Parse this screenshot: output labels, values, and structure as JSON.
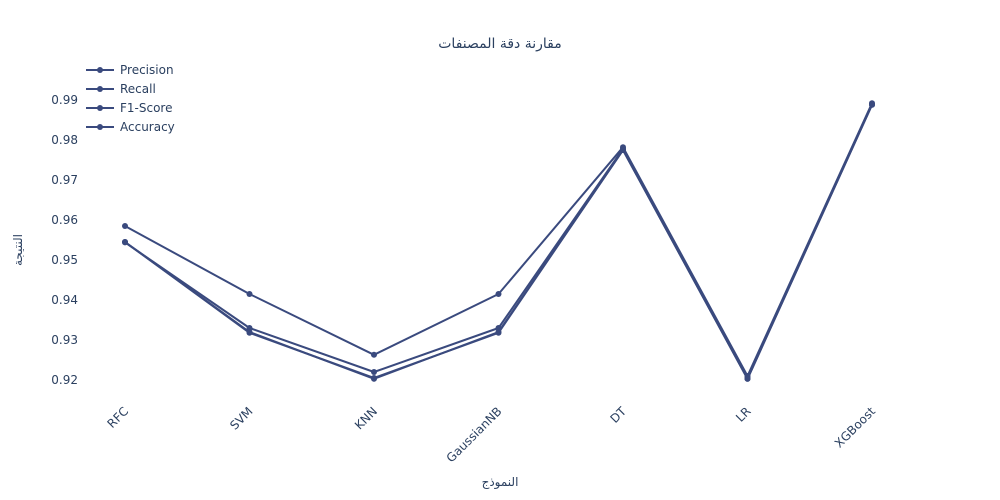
{
  "chart_data": {
    "type": "line",
    "title": "مقارنة دقة المصنفات",
    "xlabel": "النموذج",
    "ylabel": "النتيجة",
    "categories": [
      "RFC",
      "SVM",
      "KNN",
      "GaussianNB",
      "DT",
      "LR",
      "XGBoost"
    ],
    "ylim": [
      0.915,
      1.0
    ],
    "yticks": [
      "0.92",
      "0.93",
      "0.94",
      "0.95",
      "0.96",
      "0.97",
      "0.98",
      "0.99"
    ],
    "legend_position": "top-left",
    "grid": false,
    "line_color": "#3a4a7e",
    "series": [
      {
        "name": "Precision",
        "values": [
          0.9585,
          0.9415,
          0.9263,
          0.9415,
          0.9782,
          0.921,
          0.9892
        ]
      },
      {
        "name": "Recall",
        "values": [
          0.9545,
          0.932,
          0.9203,
          0.932,
          0.9775,
          0.9203,
          0.9888
        ]
      },
      {
        "name": "F1-Score",
        "values": [
          0.9544,
          0.933,
          0.922,
          0.933,
          0.9778,
          0.9207,
          0.989
        ]
      },
      {
        "name": "Accuracy",
        "values": [
          0.9545,
          0.9318,
          0.9205,
          0.9318,
          0.9775,
          0.9203,
          0.9888
        ]
      }
    ]
  }
}
